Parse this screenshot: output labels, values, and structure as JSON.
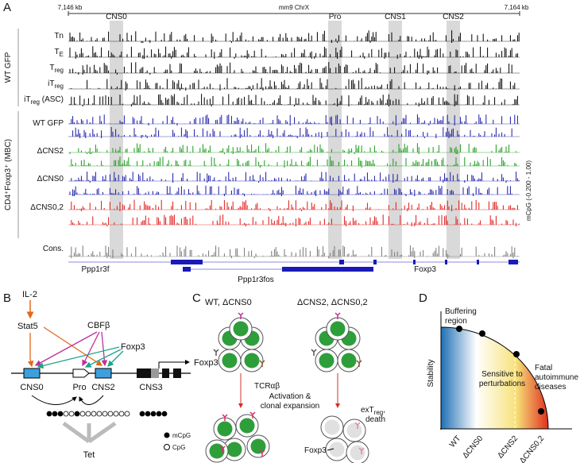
{
  "panel_a": {
    "letter": "A",
    "coord_start": "7,146 kb",
    "chromosome": "mm9  ChrX",
    "coord_end": "7,164 kb",
    "regions": [
      "CNS0",
      "Pro",
      "CNS1",
      "CNS2"
    ],
    "group_1": "WT GFP",
    "group_2": "CD4⁺Foxp3⁺ (MBC)",
    "tracks": [
      {
        "main": "Tn"
      },
      {
        "main": "T",
        "sub": "E"
      },
      {
        "main": "T",
        "sub": "reg"
      },
      {
        "main": "iT",
        "sub": "reg"
      },
      {
        "main": "iT",
        "sub": "reg",
        "suffix": " (ASC)"
      },
      {
        "main": "WT GFP"
      },
      {
        "main": "ΔCNS2"
      },
      {
        "main": "ΔCNS0"
      },
      {
        "main": "ΔCNS0,2"
      },
      {
        "main": "Cons."
      }
    ],
    "scale_label": "mCpG (-0.200 - 1.00)",
    "genes": [
      "Ppp1r3f",
      "Ppp1r3fos",
      "Foxp3"
    ]
  },
  "panel_b": {
    "letter": "B",
    "il2": "IL-2",
    "stat5": "Stat5",
    "cbfb": "CBFβ",
    "foxp3_factor": "Foxp3",
    "transcript": "Foxp3",
    "elements": [
      "CNS0",
      "Pro",
      "CNS2",
      "CNS3"
    ],
    "legend": [
      "mCpG",
      "CpG"
    ],
    "tet": "Tet"
  },
  "panel_c": {
    "letter": "C",
    "left_title": "WT, ΔCNS0",
    "right_title": "ΔCNS2, ΔCNS0,2",
    "tcr": "TCRαβ",
    "activation": [
      "Activation &",
      "clonal expansion"
    ],
    "extreg": {
      "main": "exT",
      "sub": "reg",
      "suffix": ","
    },
    "death": "death",
    "foxp3": "Foxp3"
  },
  "panel_d": {
    "letter": "D",
    "y_label": "Stability",
    "buffering": [
      "Buffering",
      "region"
    ],
    "sensitive": [
      "Sensitive to",
      "perturbations"
    ],
    "fatal": [
      "Fatal",
      "autoimmune",
      "diseases"
    ],
    "categories": [
      "WT",
      "ΔCNS0",
      "ΔCNS2",
      "ΔCNS0,2"
    ]
  }
}
